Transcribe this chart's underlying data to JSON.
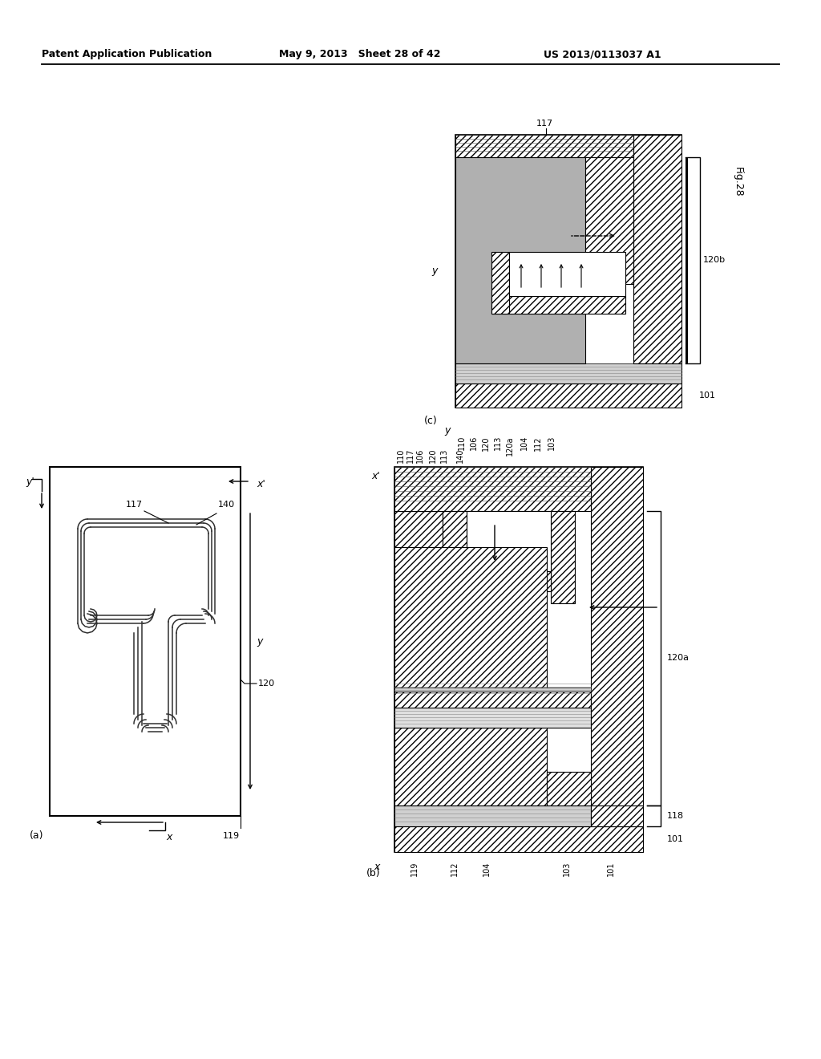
{
  "header_left": "Patent Application Publication",
  "header_mid": "May 9, 2013   Sheet 28 of 42",
  "header_right": "US 2013/0113037 A1",
  "fig_label": "Fig.28",
  "bg_color": "#ffffff",
  "hatch_diag": "////",
  "gray_dot": "#c8c8c8",
  "gray_med": "#b0b0b0",
  "panel_a": "(a)",
  "panel_b": "(b)",
  "panel_c": "(c)"
}
